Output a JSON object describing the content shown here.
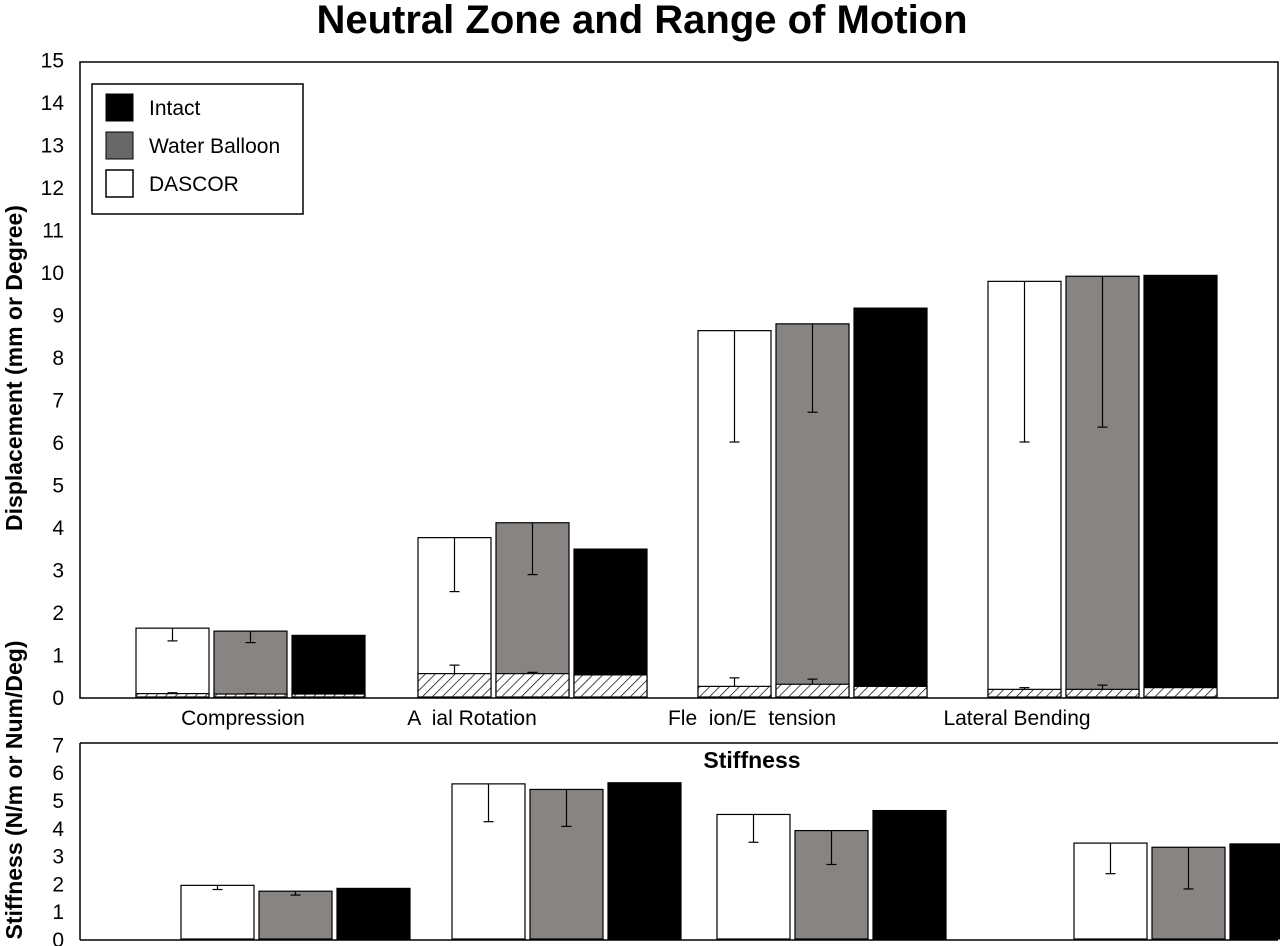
{
  "colors": {
    "intact": "#000000",
    "water_balloon": "#878481",
    "dascor": "#ffffff",
    "outline": "#000000"
  },
  "chart_data": [
    {
      "type": "bar",
      "title": "Neutral Zone and Range of Motion",
      "ylabel": "Displacement (mm or Degree)",
      "ylim": [
        0,
        15
      ],
      "yticks": [
        0,
        1,
        2,
        3,
        4,
        5,
        6,
        7,
        8,
        9,
        10,
        11,
        12,
        13,
        14,
        15
      ],
      "categories": [
        "Compression",
        "A  ial Rotation",
        "Fle  ion/E  tension",
        "Lateral Bending"
      ],
      "legend": {
        "placement": "top-left",
        "entries": [
          "Intact",
          "Water Balloon",
          "DASCOR"
        ]
      },
      "series": [
        {
          "name": "DASCOR",
          "color_key": "dascor",
          "range_of_motion": [
            1.62,
            3.75,
            8.62,
            9.78
          ],
          "rom_error_low": [
            1.32,
            2.48,
            6.0,
            6.0
          ],
          "neutral_zone": [
            0.08,
            0.55,
            0.25,
            0.18
          ],
          "nz_error_high": [
            0.1,
            0.75,
            0.45,
            0.22
          ]
        },
        {
          "name": "Water Balloon",
          "color_key": "water_balloon",
          "range_of_motion": [
            1.55,
            4.1,
            8.78,
            9.9
          ],
          "rom_error_low": [
            1.28,
            2.88,
            6.7,
            6.35
          ],
          "neutral_zone": [
            0.07,
            0.55,
            0.3,
            0.18
          ],
          "nz_error_high": [
            0.08,
            0.58,
            0.42,
            0.28
          ]
        },
        {
          "name": "Intact",
          "color_key": "intact",
          "range_of_motion": [
            1.45,
            3.48,
            9.15,
            9.92
          ],
          "rom_error_low": [
            null,
            null,
            null,
            null
          ],
          "neutral_zone": [
            0.07,
            0.52,
            0.25,
            0.22
          ],
          "nz_error_high": [
            null,
            null,
            null,
            null
          ]
        }
      ]
    },
    {
      "type": "bar",
      "title": "Stiffness",
      "ylabel": "Stiffness (N/m or Num/Deg)",
      "ylim": [
        0,
        7
      ],
      "yticks": [
        0,
        1,
        2,
        3,
        4,
        5,
        6,
        7
      ],
      "categories": [
        "Compression",
        "A  ial Rotation",
        "Fle  ion/E  tension",
        "Lateral Bending"
      ],
      "series": [
        {
          "name": "DASCOR",
          "color_key": "dascor",
          "values": [
            1.93,
            5.58,
            4.48,
            3.45
          ],
          "error_low": [
            1.78,
            4.22,
            3.48,
            2.35
          ]
        },
        {
          "name": "Water Balloon",
          "color_key": "water_balloon",
          "values": [
            1.72,
            5.38,
            3.9,
            3.3
          ],
          "error_low": [
            1.58,
            4.05,
            2.68,
            1.8
          ]
        },
        {
          "name": "Intact",
          "color_key": "intact",
          "values": [
            1.82,
            5.62,
            4.62,
            3.42
          ],
          "error_low": [
            null,
            null,
            null,
            null
          ]
        }
      ]
    }
  ]
}
